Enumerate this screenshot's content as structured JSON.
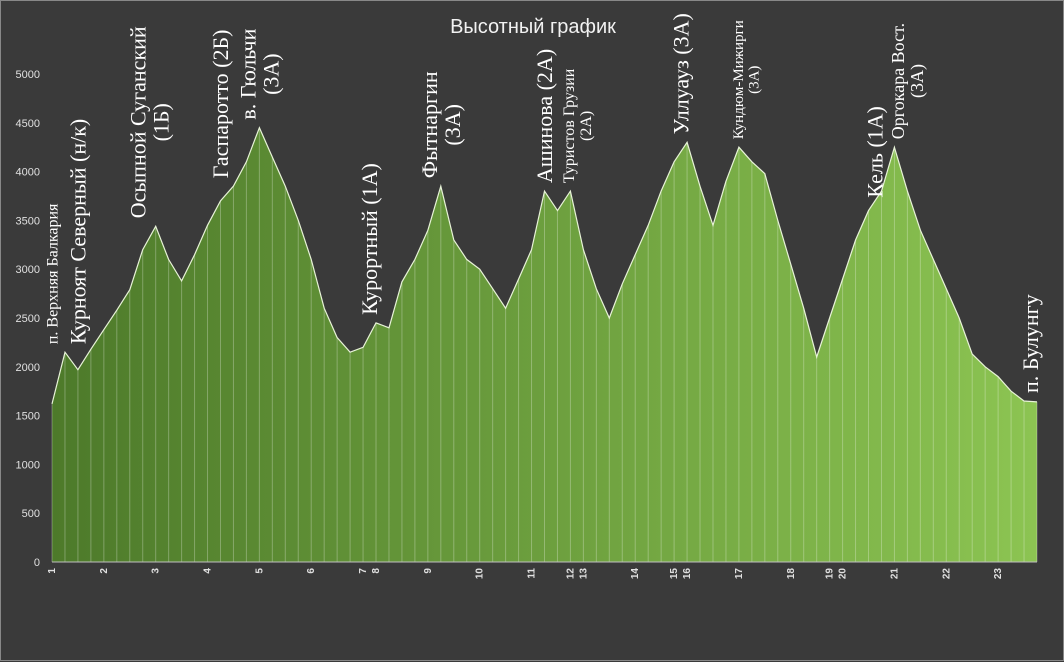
{
  "chart_data": {
    "type": "area",
    "title": "Высотный график",
    "ylim": [
      0,
      5000
    ],
    "yticks": [
      0,
      500,
      1000,
      1500,
      2000,
      2500,
      3000,
      3500,
      4000,
      4500,
      5000
    ],
    "grid": false,
    "fill_colors": [
      "#4d7a2a",
      "#8cc452"
    ],
    "line_color": "#e8f3d8",
    "series": [
      {
        "x": [
          0,
          1,
          2,
          3,
          4,
          5,
          6,
          7,
          8,
          9,
          10,
          11,
          12,
          13,
          14,
          15,
          16,
          17,
          18,
          19,
          20,
          21,
          22,
          23,
          24,
          25,
          26,
          27,
          28,
          29,
          30,
          31,
          32,
          33,
          34,
          35,
          36,
          37,
          38,
          39,
          40,
          41,
          42,
          43,
          44,
          45,
          46,
          47,
          48,
          49,
          50,
          51,
          52,
          53,
          54,
          55,
          56,
          57,
          58,
          59,
          60,
          61,
          62,
          63,
          64,
          65,
          66,
          67,
          68,
          69,
          70,
          71,
          72,
          73,
          74,
          75,
          76
        ],
        "values": [
          1620,
          2150,
          1970,
          2180,
          2380,
          2580,
          2790,
          3200,
          3440,
          3100,
          2880,
          3150,
          3450,
          3700,
          3850,
          4100,
          4450,
          4150,
          3850,
          3500,
          3100,
          2600,
          2300,
          2150,
          2200,
          2450,
          2400,
          2870,
          3100,
          3400,
          3850,
          3300,
          3100,
          3000,
          2800,
          2600,
          2900,
          3200,
          3800,
          3600,
          3800,
          3200,
          2800,
          2500,
          2850,
          3150,
          3450,
          3800,
          4100,
          4300,
          3850,
          3450,
          3900,
          4250,
          4100,
          3980,
          3500,
          3050,
          2600,
          2100,
          2500,
          2900,
          3300,
          3600,
          3800,
          4250,
          3800,
          3400,
          3100,
          2800,
          2500,
          2130,
          2000,
          1900,
          1750,
          1650,
          1640
        ]
      }
    ],
    "x_tick_labels": [
      {
        "label": "1",
        "x": 0
      },
      {
        "label": "2",
        "x": 4
      },
      {
        "label": "3",
        "x": 8
      },
      {
        "label": "4",
        "x": 12
      },
      {
        "label": "5",
        "x": 16
      },
      {
        "label": "6",
        "x": 20
      },
      {
        "label": "7",
        "x": 24
      },
      {
        "label": "8",
        "x": 25
      },
      {
        "label": "9",
        "x": 29
      },
      {
        "label": "10",
        "x": 33
      },
      {
        "label": "11",
        "x": 37
      },
      {
        "label": "12",
        "x": 40
      },
      {
        "label": "13",
        "x": 41
      },
      {
        "label": "14",
        "x": 45
      },
      {
        "label": "15",
        "x": 48
      },
      {
        "label": "16",
        "x": 49
      },
      {
        "label": "17",
        "x": 53
      },
      {
        "label": "18",
        "x": 57
      },
      {
        "label": "19",
        "x": 60
      },
      {
        "label": "20",
        "x": 61
      },
      {
        "label": "21",
        "x": 65
      },
      {
        "label": "22",
        "x": 69
      },
      {
        "label": "23",
        "x": 73
      }
    ],
    "annotations": [
      {
        "lines": [
          "п. Верхняя Балкария"
        ],
        "x": 0,
        "y": 2150,
        "size": 16
      },
      {
        "lines": [
          "Курноят Северный (н/к)"
        ],
        "x": 2,
        "y": 2150,
        "size": 22
      },
      {
        "lines": [
          "Осыпной Суганский",
          "(1Б)"
        ],
        "x": 7.5,
        "y": 3440,
        "size": 22
      },
      {
        "lines": [
          "Гаспаротто (2Б)"
        ],
        "x": 13,
        "y": 3850,
        "size": 22
      },
      {
        "lines": [
          "в. Гюльчи",
          "(3А)"
        ],
        "x": 16,
        "y": 4450,
        "size": 22
      },
      {
        "lines": [
          "Курортный (1А)"
        ],
        "x": 24.5,
        "y": 2450,
        "size": 22
      },
      {
        "lines": [
          "Фытнаргин",
          "(3А)"
        ],
        "x": 30,
        "y": 3850,
        "size": 22
      },
      {
        "lines": [
          "Ашинова (2А)"
        ],
        "x": 38,
        "y": 3800,
        "size": 22
      },
      {
        "lines": [
          "Туристов Грузии",
          "(2А)"
        ],
        "x": 40.5,
        "y": 3800,
        "size": 16
      },
      {
        "lines": [
          "Уллуауз (3А)"
        ],
        "x": 48.5,
        "y": 4300,
        "size": 22
      },
      {
        "lines": [
          "Кундюм-Мижирги",
          "(3А)"
        ],
        "x": 53.5,
        "y": 4250,
        "size": 15
      },
      {
        "lines": [
          "Кель (1А)"
        ],
        "x": 63.5,
        "y": 3650,
        "size": 22
      },
      {
        "lines": [
          "Оргокара Вост.",
          "(3А)"
        ],
        "x": 66,
        "y": 4250,
        "size": 18
      },
      {
        "lines": [
          "п. Булунгу"
        ],
        "x": 75.5,
        "y": 1650,
        "size": 22
      }
    ]
  }
}
